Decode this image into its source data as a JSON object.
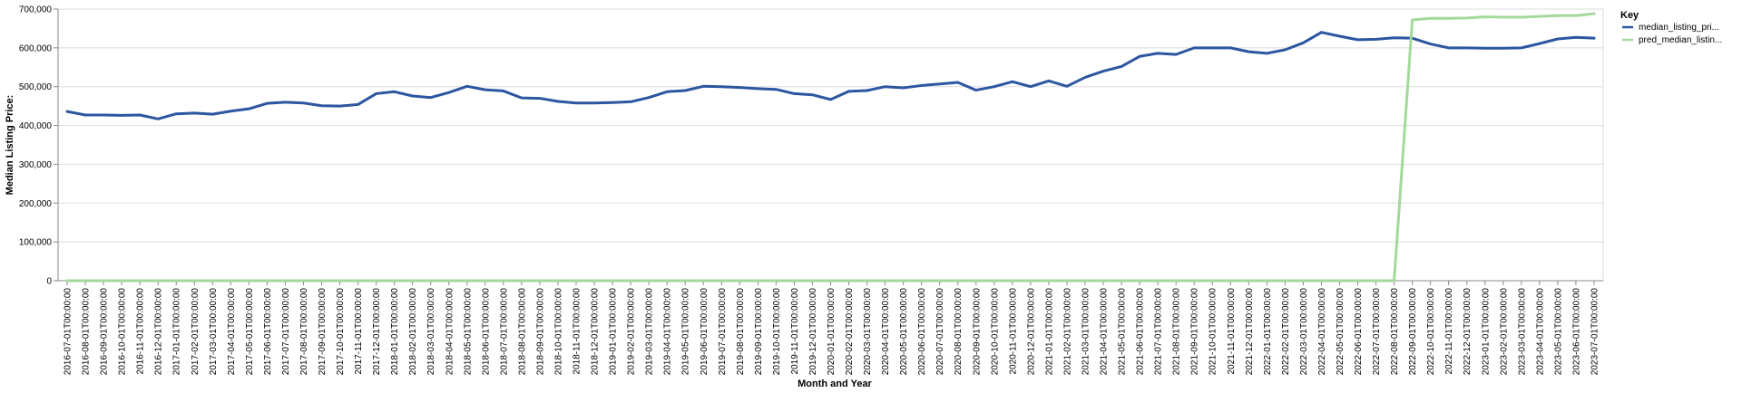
{
  "chart_data": {
    "type": "line",
    "xlabel": "Month and Year",
    "ylabel": "Median Listing Price:",
    "ylim": [
      0,
      700000
    ],
    "y_ticks": [
      "0",
      "100,000",
      "200,000",
      "300,000",
      "400,000",
      "500,000",
      "600,000",
      "700,000"
    ],
    "grid": true,
    "legend": {
      "title": "Key",
      "position": "right"
    },
    "x": [
      "2016-07-01T00:00:00",
      "2016-08-01T00:00:00",
      "2016-09-01T00:00:00",
      "2016-10-01T00:00:00",
      "2016-11-01T00:00:00",
      "2016-12-01T00:00:00",
      "2017-01-01T00:00:00",
      "2017-02-01T00:00:00",
      "2017-03-01T00:00:00",
      "2017-04-01T00:00:00",
      "2017-05-01T00:00:00",
      "2017-06-01T00:00:00",
      "2017-07-01T00:00:00",
      "2017-08-01T00:00:00",
      "2017-09-01T00:00:00",
      "2017-10-01T00:00:00",
      "2017-11-01T00:00:00",
      "2017-12-01T00:00:00",
      "2018-01-01T00:00:00",
      "2018-02-01T00:00:00",
      "2018-03-01T00:00:00",
      "2018-04-01T00:00:00",
      "2018-05-01T00:00:00",
      "2018-06-01T00:00:00",
      "2018-07-01T00:00:00",
      "2018-08-01T00:00:00",
      "2018-09-01T00:00:00",
      "2018-10-01T00:00:00",
      "2018-11-01T00:00:00",
      "2018-12-01T00:00:00",
      "2019-01-01T00:00:00",
      "2019-02-01T00:00:00",
      "2019-03-01T00:00:00",
      "2019-04-01T00:00:00",
      "2019-05-01T00:00:00",
      "2019-06-01T00:00:00",
      "2019-07-01T00:00:00",
      "2019-08-01T00:00:00",
      "2019-09-01T00:00:00",
      "2019-10-01T00:00:00",
      "2019-11-01T00:00:00",
      "2019-12-01T00:00:00",
      "2020-01-01T00:00:00",
      "2020-02-01T00:00:00",
      "2020-03-01T00:00:00",
      "2020-04-01T00:00:00",
      "2020-05-01T00:00:00",
      "2020-06-01T00:00:00",
      "2020-07-01T00:00:00",
      "2020-08-01T00:00:00",
      "2020-09-01T00:00:00",
      "2020-10-01T00:00:00",
      "2020-11-01T00:00:00",
      "2020-12-01T00:00:00",
      "2021-01-01T00:00:00",
      "2021-02-01T00:00:00",
      "2021-03-01T00:00:00",
      "2021-04-01T00:00:00",
      "2021-05-01T00:00:00",
      "2021-06-01T00:00:00",
      "2021-07-01T00:00:00",
      "2021-08-01T00:00:00",
      "2021-09-01T00:00:00",
      "2021-10-01T00:00:00",
      "2021-11-01T00:00:00",
      "2021-12-01T00:00:00",
      "2022-01-01T00:00:00",
      "2022-02-01T00:00:00",
      "2022-03-01T00:00:00",
      "2022-04-01T00:00:00",
      "2022-05-01T00:00:00",
      "2022-06-01T00:00:00",
      "2022-07-01T00:00:00",
      "2022-08-01T00:00:00",
      "2022-09-01T00:00:00",
      "2022-10-01T00:00:00",
      "2022-11-01T00:00:00",
      "2022-12-01T00:00:00",
      "2023-01-01T00:00:00",
      "2023-02-01T00:00:00",
      "2023-03-01T00:00:00",
      "2023-04-01T00:00:00",
      "2023-05-01T00:00:00",
      "2023-06-01T00:00:00",
      "2023-07-01T00:00:00"
    ],
    "series": [
      {
        "name": "median_listing_pri...",
        "color": "#2c56a0",
        "values": [
          436000,
          427000,
          427000,
          426000,
          427000,
          417000,
          430000,
          432000,
          429000,
          437000,
          443000,
          457000,
          460000,
          458000,
          451000,
          450000,
          454000,
          482000,
          487000,
          476000,
          472000,
          485000,
          501000,
          492000,
          489000,
          471000,
          470000,
          462000,
          458000,
          458000,
          459000,
          461000,
          472000,
          487000,
          490000,
          501000,
          500000,
          498000,
          495000,
          493000,
          482000,
          479000,
          467000,
          488000,
          490000,
          500000,
          497000,
          503000,
          507000,
          511000,
          491000,
          500000,
          513000,
          500000,
          515000,
          501000,
          524000,
          540000,
          552000,
          578000,
          586000,
          583000,
          600000,
          600000,
          600000,
          590000,
          586000,
          595000,
          613000,
          640000,
          630000,
          621000,
          622000,
          626000,
          625000,
          610000,
          600000,
          600000,
          599000,
          599000,
          600000,
          611000,
          623000,
          627000,
          625000
        ]
      },
      {
        "name": "pred_median_listin...",
        "color": "#a3d99b",
        "values": [
          0,
          0,
          0,
          0,
          0,
          0,
          0,
          0,
          0,
          0,
          0,
          0,
          0,
          0,
          0,
          0,
          0,
          0,
          0,
          0,
          0,
          0,
          0,
          0,
          0,
          0,
          0,
          0,
          0,
          0,
          0,
          0,
          0,
          0,
          0,
          0,
          0,
          0,
          0,
          0,
          0,
          0,
          0,
          0,
          0,
          0,
          0,
          0,
          0,
          0,
          0,
          0,
          0,
          0,
          0,
          0,
          0,
          0,
          0,
          0,
          0,
          0,
          0,
          0,
          0,
          0,
          0,
          0,
          0,
          0,
          0,
          0,
          0,
          0,
          672000,
          676000,
          676000,
          677000,
          680000,
          679000,
          679000,
          681000,
          683000,
          683000,
          688000
        ]
      }
    ]
  }
}
